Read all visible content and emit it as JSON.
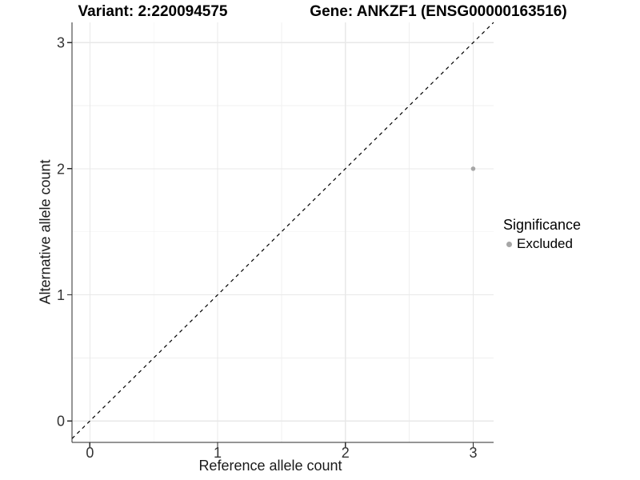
{
  "titles": {
    "variant": "Variant: 2:220094575",
    "gene": "Gene: ANKZF1 (ENSG00000163516)"
  },
  "legend": {
    "title": "Significance",
    "items": [
      {
        "label": "Excluded",
        "color": "#a6a6a6"
      }
    ]
  },
  "chart_data": {
    "type": "scatter",
    "xlabel": "Reference allele count",
    "ylabel": "Alternative allele count",
    "xlim": [
      -0.14,
      3.16
    ],
    "ylim": [
      -0.17,
      3.16
    ],
    "xticks": [
      0,
      1,
      2,
      3
    ],
    "yticks": [
      0,
      1,
      2,
      3
    ],
    "xminor": [
      0.5,
      1.5,
      2.5
    ],
    "yminor": [
      0.5,
      1.5,
      2.5
    ],
    "grid": "major+minor",
    "legend_position": "right",
    "reference_line": {
      "kind": "identity-diagonal",
      "style": "dashed",
      "color": "#000000"
    },
    "series": [
      {
        "name": "Excluded",
        "color": "#a6a6a6",
        "points": [
          {
            "x": 3,
            "y": 2
          }
        ]
      }
    ]
  },
  "colors": {
    "background": "#ffffff",
    "grid_major": "#e8e8e8",
    "grid_minor": "#f0f0f0",
    "axis_line": "#2b2b2b",
    "tick_mark": "#2b2b2b",
    "tick_label": "#333333",
    "diagonal": "#000000",
    "point": "#a6a6a6"
  }
}
